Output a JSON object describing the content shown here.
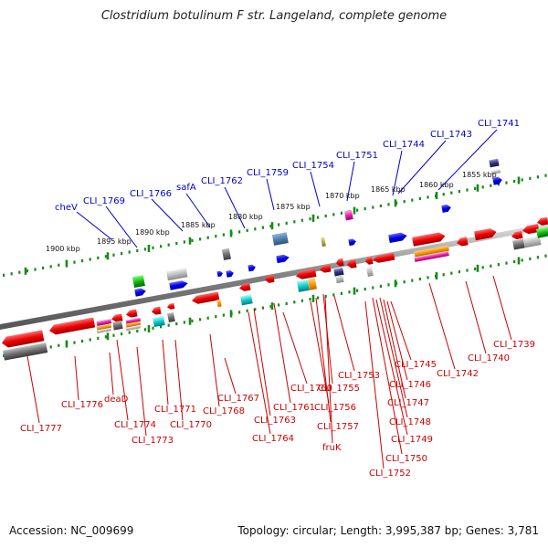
{
  "title": "Clostridium botulinum F str. Langeland, complete genome",
  "footer": {
    "accession": "Accession: NC_009699",
    "topology": "Topology: circular; Length: 3,995,387 bp; Genes: 3,781"
  },
  "colors": {
    "forward_label": "#0000cc",
    "reverse_label": "#cc0000",
    "backbone": "#777777",
    "tick": "#1a8a1a"
  },
  "kbp_ticks": [
    "1900 kbp",
    "1895 kbp",
    "1890 kbp",
    "1885 kbp",
    "1880 kbp",
    "1875 kbp",
    "1870 kbp",
    "1865 kbp",
    "1860 kbp",
    "1855 kbp"
  ],
  "forward_labels": [
    "cheV",
    "CLI_1769",
    "CLI_1766",
    "safA",
    "CLI_1762",
    "CLI_1759",
    "CLI_1754",
    "CLI_1751",
    "CLI_1744",
    "CLI_1743",
    "CLI_1741"
  ],
  "reverse_labels": [
    "CLI_1777",
    "CLI_1776",
    "deaD",
    "CLI_1774",
    "CLI_1773",
    "CLI_1771",
    "CLI_1770",
    "CLI_1767",
    "CLI_1768",
    "CLI_1764",
    "CLI_1763",
    "CLI_1761",
    "CLI_1760",
    "CLI_1756",
    "CLI_1757",
    "CLI_1755",
    "fruK",
    "CLI_1753",
    "CLI_1752",
    "CLI_1750",
    "CLI_1749",
    "CLI_1748",
    "CLI_1747",
    "CLI_1746",
    "CLI_1745",
    "CLI_1742",
    "CLI_1740",
    "CLI_1739"
  ]
}
